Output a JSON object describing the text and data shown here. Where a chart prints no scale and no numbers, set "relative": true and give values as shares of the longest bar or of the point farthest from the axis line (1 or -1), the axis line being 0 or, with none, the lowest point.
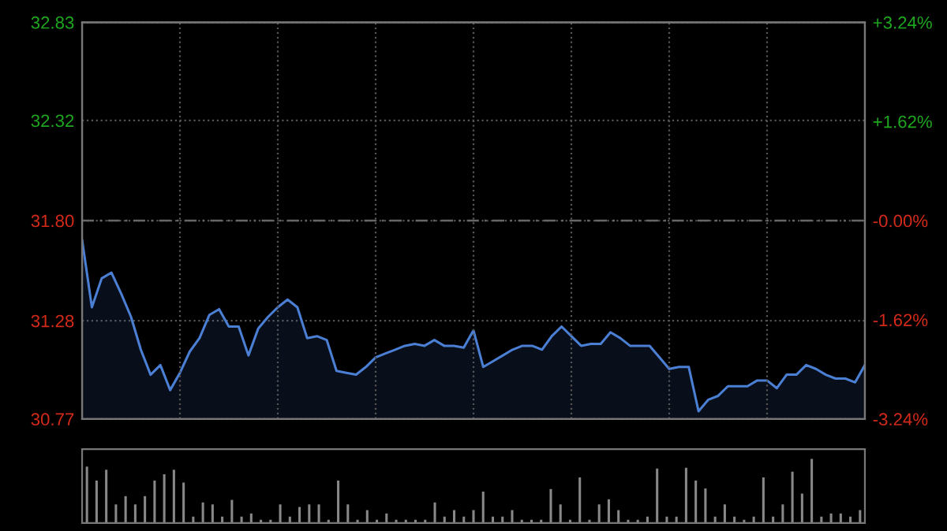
{
  "chart_data": [
    {
      "type": "area",
      "categories": [
        null,
        null,
        null,
        null,
        null,
        null,
        null,
        null,
        null,
        null,
        null,
        null,
        null,
        null,
        null,
        null,
        null,
        null,
        null,
        null,
        null,
        null,
        null,
        null,
        null,
        null,
        null,
        null,
        null,
        null,
        null,
        null,
        null,
        null,
        null,
        null,
        null,
        null,
        null,
        null,
        null,
        null,
        null,
        null,
        null,
        null,
        null,
        null,
        null,
        null,
        null,
        null,
        null,
        null,
        null,
        null,
        null,
        null,
        null,
        null,
        null,
        null,
        null,
        null,
        null,
        null,
        null,
        null,
        null,
        null,
        null,
        null,
        null,
        null,
        null,
        null,
        null,
        null,
        null,
        null,
        null
      ],
      "series": [
        {
          "color": "#4a7fd4",
          "values": [
            31.7,
            31.35,
            31.5,
            31.53,
            31.42,
            31.3,
            31.13,
            31.0,
            31.05,
            30.92,
            31.01,
            31.12,
            31.19,
            31.31,
            31.34,
            31.25,
            31.25,
            31.1,
            31.24,
            31.3,
            31.35,
            31.39,
            31.35,
            31.19,
            31.2,
            31.18,
            31.02,
            31.01,
            31.0,
            31.04,
            31.09,
            31.11,
            31.13,
            31.15,
            31.16,
            31.15,
            31.18,
            31.15,
            31.15,
            31.14,
            31.23,
            31.04,
            31.07,
            31.1,
            31.13,
            31.15,
            31.15,
            31.13,
            31.2,
            31.25,
            31.2,
            31.15,
            31.16,
            31.16,
            31.22,
            31.19,
            31.15,
            31.15,
            31.15,
            31.09,
            31.03,
            31.04,
            31.04,
            30.81,
            30.87,
            30.89,
            30.94,
            30.94,
            30.94,
            30.97,
            30.97,
            30.93,
            31.0,
            31.0,
            31.05,
            31.03,
            31.0,
            30.98,
            30.98,
            30.96,
            31.05
          ]
        }
      ],
      "ylim": [
        30.77,
        32.83
      ],
      "yticks": [
        {
          "value": 30.77,
          "label": "30.77"
        },
        {
          "value": 31.28,
          "label": "31.28"
        },
        {
          "value": 31.8,
          "label": "31.80"
        },
        {
          "value": 32.32,
          "label": "32.32"
        },
        {
          "value": 32.83,
          "label": "32.83"
        }
      ],
      "y2lim": [
        -3.24,
        3.24
      ],
      "y2ticks": [
        {
          "value": -3.24,
          "label": "-3.24%"
        },
        {
          "value": -1.62,
          "label": "-1.62%"
        },
        {
          "value": 0,
          "label": "-0.00%"
        },
        {
          "value": 1.62,
          "label": "+1.62%"
        },
        {
          "value": 3.24,
          "label": "+3.24%"
        }
      ],
      "ref_lines": [
        {
          "axis": "y",
          "value": 31.8,
          "line_style": "dashed",
          "color": "#666666"
        }
      ],
      "grid": true
    },
    {
      "type": "bar",
      "relative": true,
      "color": "#888888",
      "categories": [
        null,
        null,
        null,
        null,
        null,
        null,
        null,
        null,
        null,
        null,
        null,
        null,
        null,
        null,
        null,
        null,
        null,
        null,
        null,
        null,
        null,
        null,
        null,
        null,
        null,
        null,
        null,
        null,
        null,
        null,
        null,
        null,
        null,
        null,
        null,
        null,
        null,
        null,
        null,
        null,
        null,
        null,
        null,
        null,
        null,
        null,
        null,
        null,
        null,
        null,
        null,
        null,
        null,
        null,
        null,
        null,
        null,
        null,
        null,
        null,
        null,
        null,
        null,
        null,
        null,
        null,
        null,
        null,
        null,
        null,
        null,
        null,
        null,
        null,
        null,
        null,
        null,
        null,
        null,
        null,
        null
      ],
      "values": [
        0.88,
        0.66,
        0.83,
        0.29,
        0.42,
        0.29,
        0.42,
        0.66,
        0.76,
        0.83,
        0.63,
        0.1,
        0.32,
        0.29,
        0.1,
        0.36,
        0.1,
        0.15,
        0.05,
        0.05,
        0.29,
        0.1,
        0.25,
        0.29,
        0.29,
        0.05,
        0.66,
        0.29,
        0.05,
        0.2,
        0.05,
        0.15,
        0.05,
        0.05,
        0.05,
        0.05,
        0.32,
        0.1,
        0.2,
        0.1,
        0.2,
        0.49,
        0.1,
        0.1,
        0.2,
        0.05,
        0.05,
        0.05,
        0.53,
        0.29,
        0.05,
        0.71,
        0.05,
        0.29,
        0.37,
        0.2,
        0.05,
        0.05,
        0.1,
        0.85,
        0.1,
        0.1,
        0.86,
        0.66,
        0.54,
        0.1,
        0.29,
        0.1,
        0.05,
        0.1,
        0.71,
        0.1,
        0.29,
        0.8,
        0.46,
        1,
        0.1,
        0.15,
        0.15,
        0.1,
        0.2
      ]
    }
  ]
}
